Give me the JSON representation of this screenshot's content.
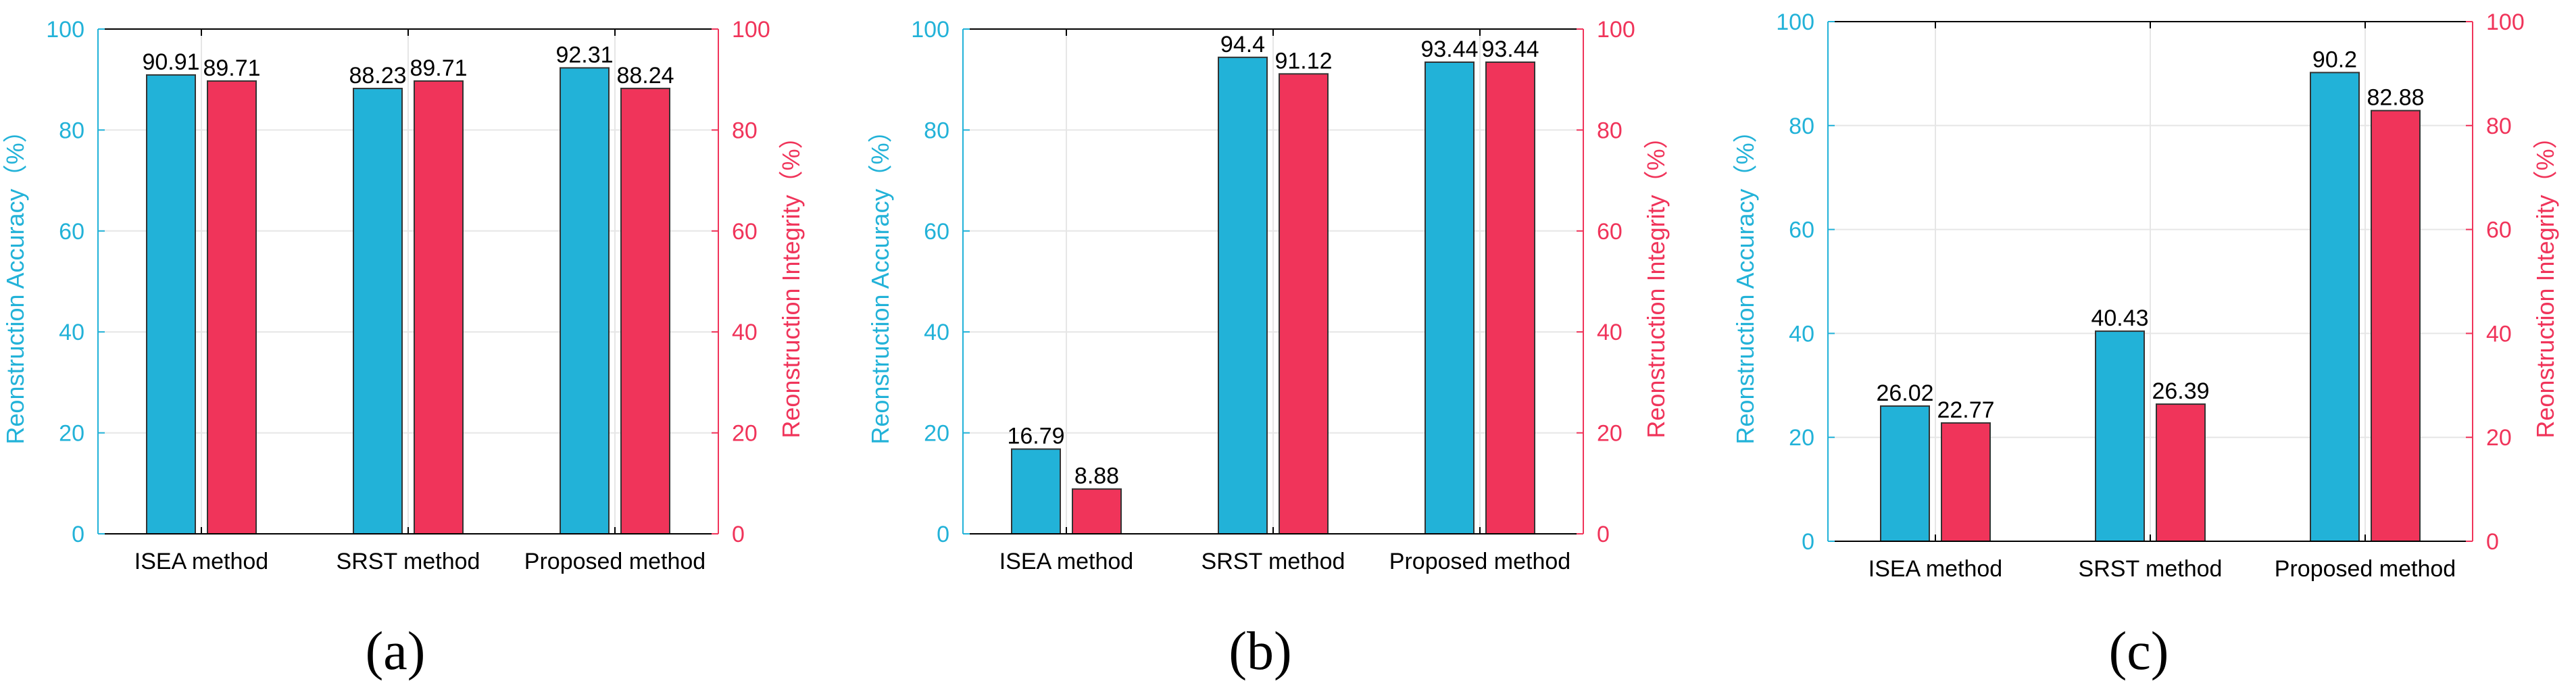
{
  "colors": {
    "accuracy": "#22B2D8",
    "integrity": "#F0345A",
    "axis": "#000000",
    "grid": "#e6e6e6"
  },
  "chart_data": [
    {
      "type": "bar",
      "panel_label": "(a)",
      "categories": [
        "ISEA method",
        "SRST method",
        "Proposed method"
      ],
      "series": [
        {
          "name": "Reonstruction Accuracy",
          "axis": "left",
          "values": [
            90.91,
            88.23,
            92.31
          ],
          "labels": [
            "90.91",
            "88.23",
            "92.31"
          ]
        },
        {
          "name": "Reonstruction Integrity",
          "axis": "right",
          "values": [
            89.71,
            89.71,
            88.24
          ],
          "labels": [
            "89.71",
            "89.71",
            "88.24"
          ]
        }
      ],
      "ylabel_left": "Reonstruction Accuracy（%）",
      "ylabel_right": "Reonstruction Integrity（%）",
      "ylim": [
        0,
        100
      ],
      "yticks": [
        "0",
        "20",
        "40",
        "60",
        "80",
        "100"
      ],
      "grid": true
    },
    {
      "type": "bar",
      "panel_label": "(b)",
      "categories": [
        "ISEA method",
        "SRST method",
        "Proposed method"
      ],
      "series": [
        {
          "name": "Reonstruction Accuracy",
          "axis": "left",
          "values": [
            16.79,
            94.4,
            93.44
          ],
          "labels": [
            "16.79",
            "94.4",
            "93.44"
          ]
        },
        {
          "name": "Reonstruction Integrity",
          "axis": "right",
          "values": [
            8.88,
            91.12,
            93.44
          ],
          "labels": [
            "8.88",
            "91.12",
            "93.44"
          ]
        }
      ],
      "ylabel_left": "Reonstruction Accuracy（%）",
      "ylabel_right": "Reonstruction Integrity（%）",
      "ylim": [
        0,
        100
      ],
      "yticks": [
        "0",
        "20",
        "40",
        "60",
        "80",
        "100"
      ],
      "grid": true
    },
    {
      "type": "bar",
      "panel_label": "(c)",
      "categories": [
        "ISEA method",
        "SRST method",
        "Proposed method"
      ],
      "series": [
        {
          "name": "Reonstruction Accuracy",
          "axis": "left",
          "values": [
            26.02,
            40.43,
            90.2
          ],
          "labels": [
            "26.02",
            "40.43",
            "90.2"
          ]
        },
        {
          "name": "Reonstruction Integrity",
          "axis": "right",
          "values": [
            22.77,
            26.39,
            82.88
          ],
          "labels": [
            "22.77",
            "26.39",
            "82.88"
          ]
        }
      ],
      "ylabel_left": "Reonstruction Accuracy（%）",
      "ylabel_right": "Reonstruction Integrity（%）",
      "ylim": [
        0,
        100
      ],
      "yticks": [
        "0",
        "20",
        "40",
        "60",
        "80",
        "100"
      ],
      "grid": true
    }
  ]
}
